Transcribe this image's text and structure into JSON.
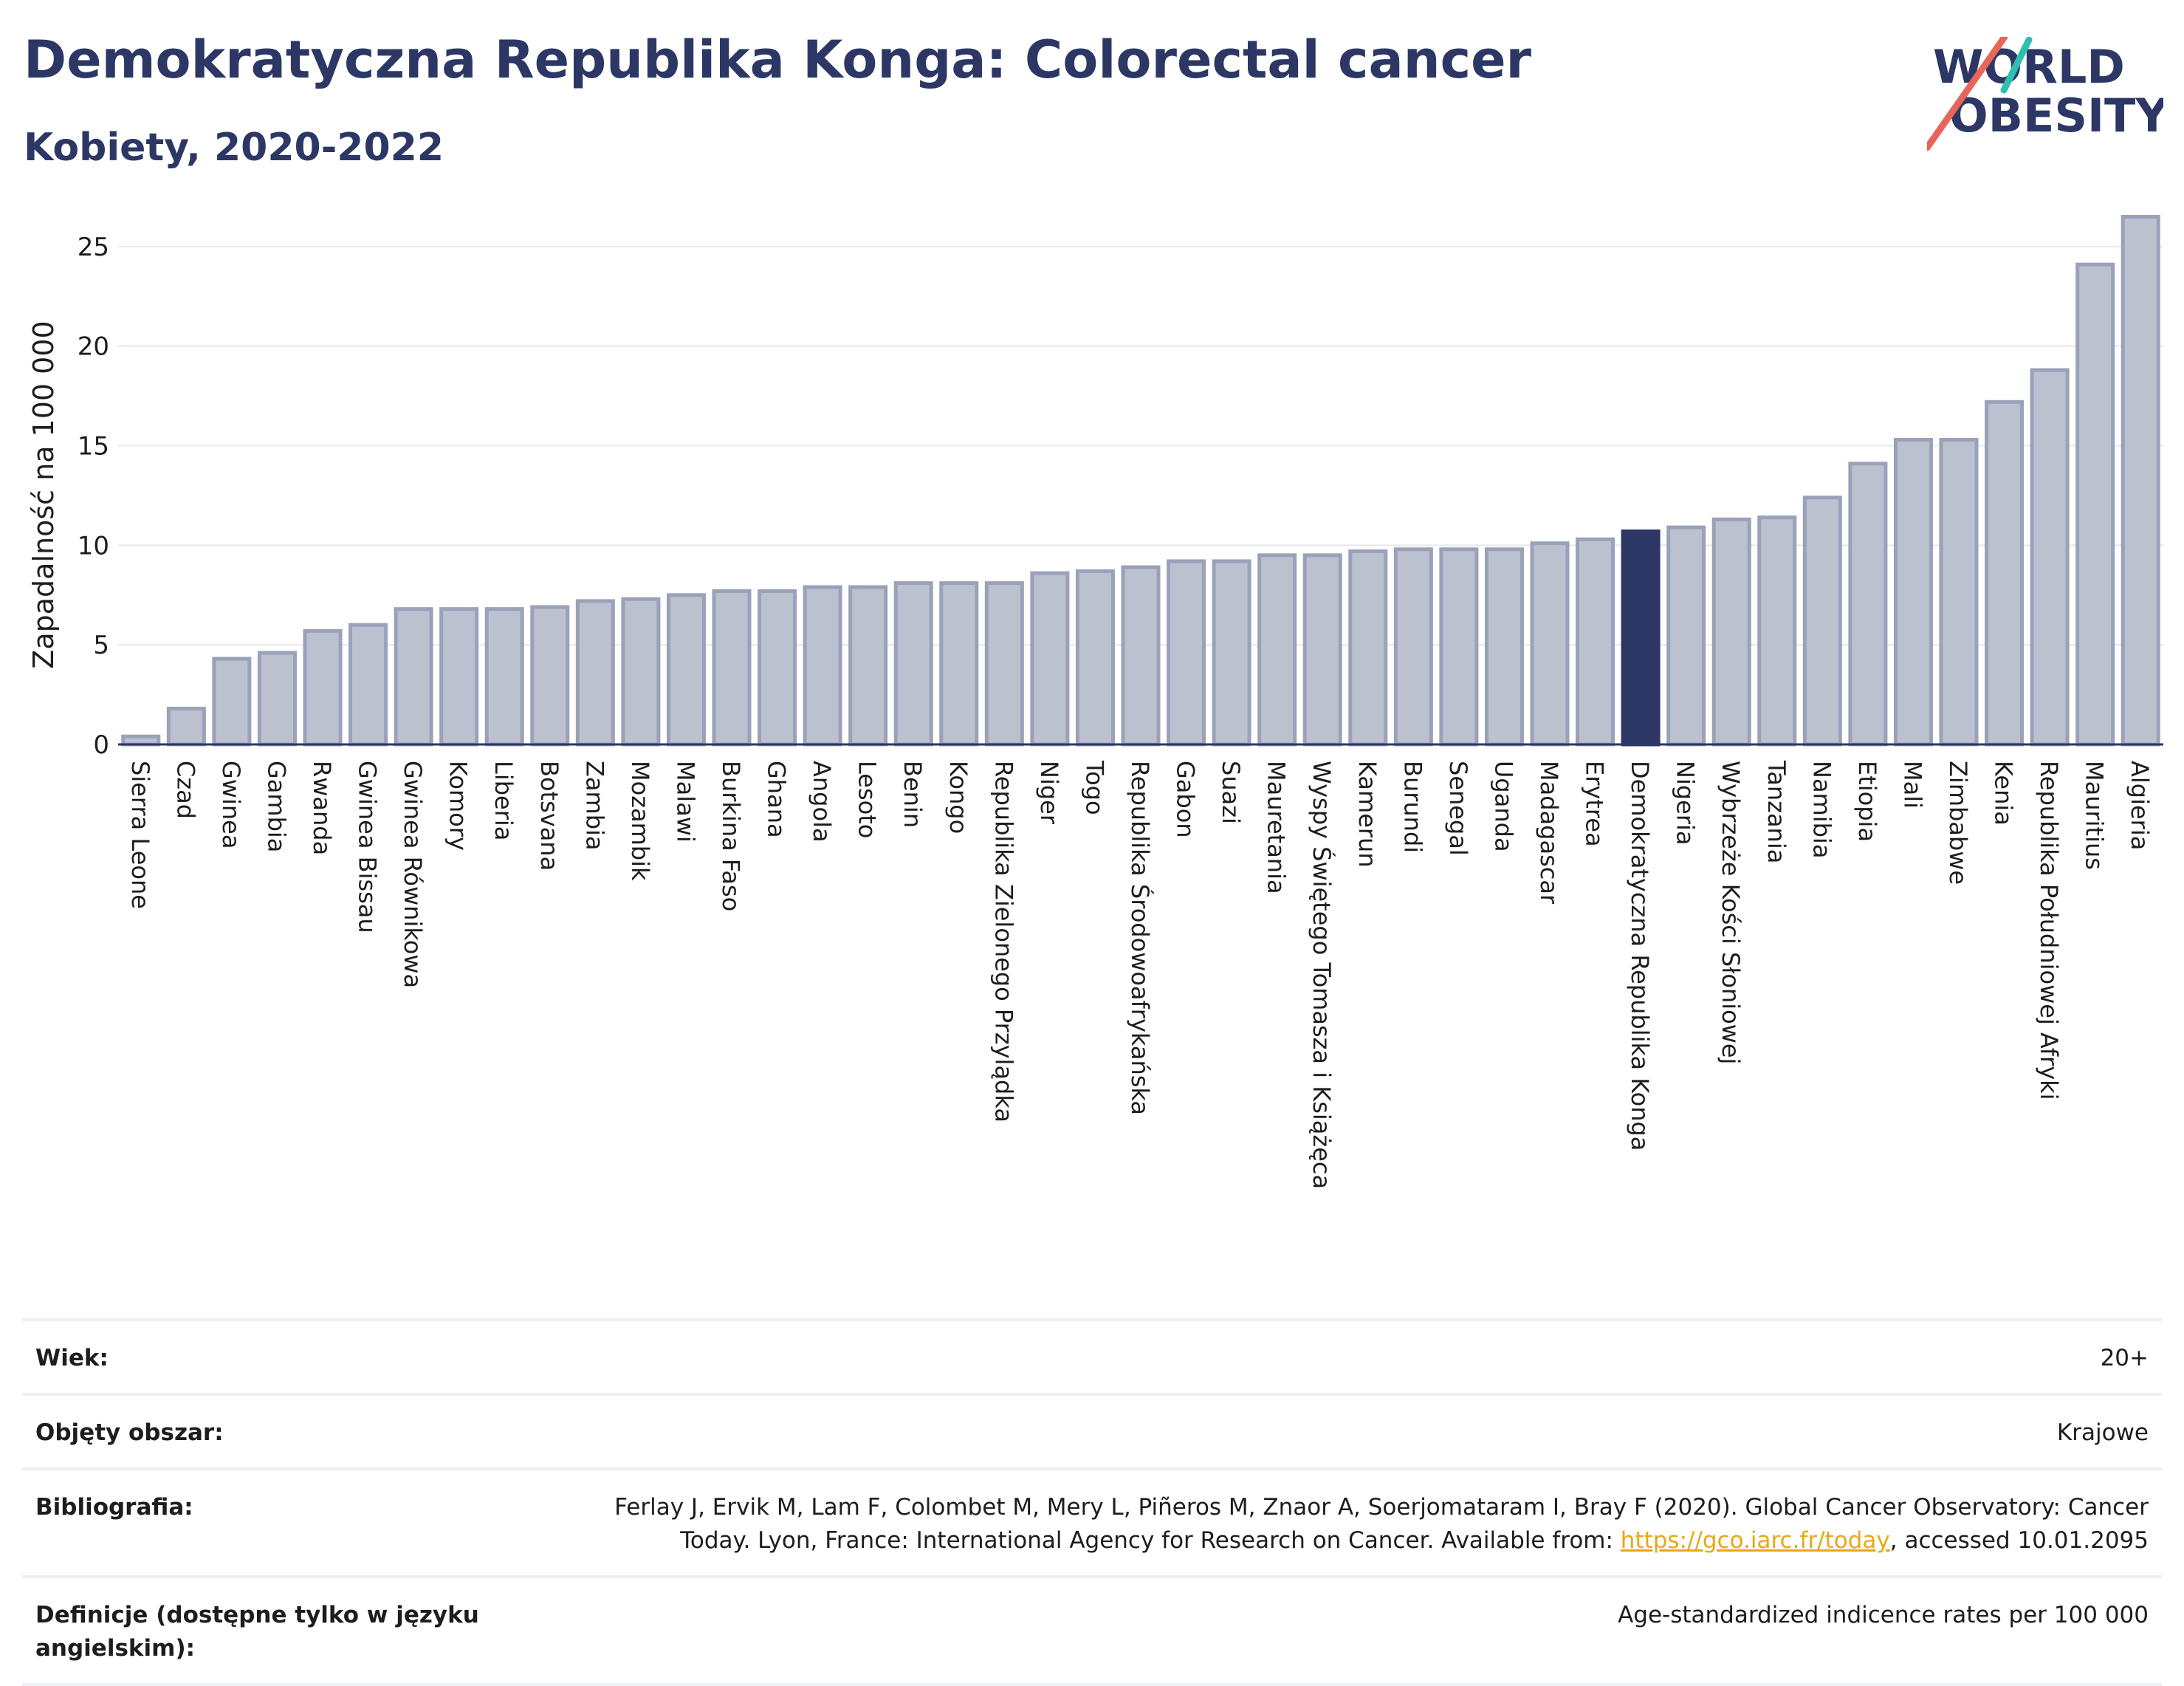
{
  "header": {
    "title": "Demokratyczna Republika Konga: Colorectal cancer",
    "subtitle": "Kobiety, 2020-2022"
  },
  "logo": {
    "line1": "WORLD",
    "line2": "OBESITY",
    "accent_colors": [
      "#2fbfb1",
      "#e8655a"
    ]
  },
  "chart_data": {
    "type": "bar",
    "ylabel": "Zapadalność na 100 000",
    "ylim": [
      0,
      27
    ],
    "yticks": [
      0,
      5,
      10,
      15,
      20,
      25
    ],
    "grid": true,
    "highlight": "Demokratyczna Republika Konga",
    "colors": {
      "bar": "#bcc1cf",
      "bar_stroke": "#9aa1b9",
      "highlight": "#2c3765"
    },
    "categories": [
      "Sierra Leone",
      "Czad",
      "Gwinea",
      "Gambia",
      "Rwanda",
      "Gwinea Bissau",
      "Gwinea Równikowa",
      "Komory",
      "Liberia",
      "Botsvana",
      "Zambia",
      "Mozambik",
      "Malawi",
      "Burkina Faso",
      "Ghana",
      "Angola",
      "Lesoto",
      "Benin",
      "Kongo",
      "Republika Zielonego Przylądka",
      "Niger",
      "Togo",
      "Republika Środowoafrykańska",
      "Gabon",
      "Suazi",
      "Mauretania",
      "Wyspy Świętego Tomasza i Książęca",
      "Kamerun",
      "Burundi",
      "Senegal",
      "Uganda",
      "Madagascar",
      "Erytrea",
      "Demokratyczna Republika Konga",
      "Nigeria",
      "Wybrzeże Kości Słoniowej",
      "Tanzania",
      "Namibia",
      "Etiopia",
      "Mali",
      "Zimbabwe",
      "Kenia",
      "Republika Południowej Afryki",
      "Mauritius",
      "Algieria"
    ],
    "values": [
      0.4,
      1.8,
      4.3,
      4.6,
      5.7,
      6.0,
      6.8,
      6.8,
      6.8,
      6.9,
      7.2,
      7.3,
      7.5,
      7.7,
      7.7,
      7.9,
      7.9,
      8.1,
      8.1,
      8.1,
      8.6,
      8.7,
      8.9,
      9.2,
      9.2,
      9.5,
      9.5,
      9.7,
      9.8,
      9.8,
      9.8,
      10.1,
      10.3,
      10.7,
      10.9,
      11.3,
      11.4,
      12.4,
      14.1,
      15.3,
      15.3,
      17.2,
      18.8,
      24.1,
      26.5
    ]
  },
  "info": [
    {
      "label": "Wiek:",
      "value": "20+"
    },
    {
      "label": "Objęty obszar:",
      "value": "Krajowe"
    },
    {
      "label": "Bibliografia:",
      "value_pre": "Ferlay J, Ervik M, Lam F, Colombet M, Mery L, Piñeros M, Znaor A, Soerjomataram I, Bray F (2020). Global Cancer Observatory: Cancer Today. Lyon, France: International Agency for Research on Cancer. Available from: ",
      "link": "https://gco.iarc.fr/today",
      "value_post": ", accessed 10.01.2095"
    },
    {
      "label": "Definicje (dostępne tylko w języku angielskim):",
      "value": "Age-standardized indicence rates per 100 000"
    }
  ]
}
